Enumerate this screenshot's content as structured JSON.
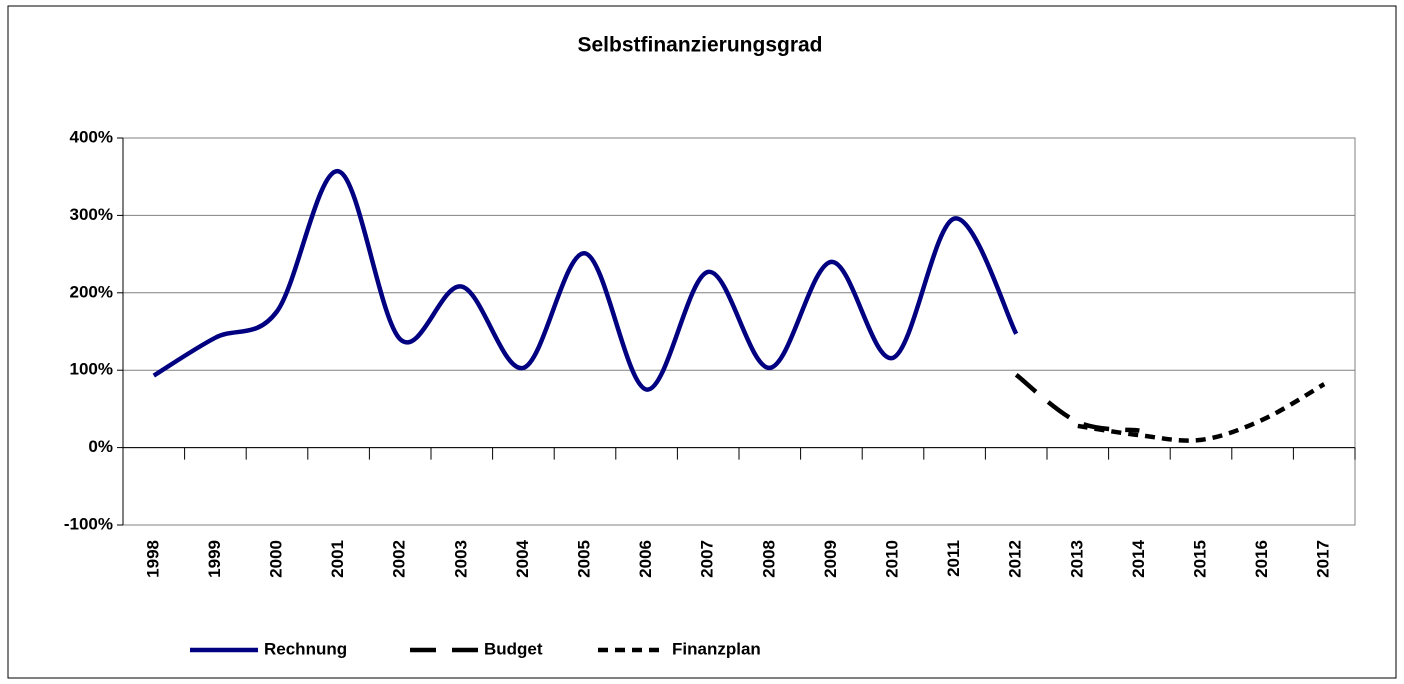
{
  "chart_data": {
    "type": "line",
    "title": "Selbstfinanzierungsgrad",
    "categories": [
      "1998",
      "1999",
      "2000",
      "2001",
      "2002",
      "2003",
      "2004",
      "2005",
      "2006",
      "2007",
      "2008",
      "2009",
      "2010",
      "2011",
      "2012",
      "2013",
      "2014",
      "2015",
      "2016",
      "2017"
    ],
    "series": [
      {
        "name": "Rechnung",
        "color": "#000080",
        "dash": "solid",
        "values": [
          93,
          142,
          176,
          357,
          140,
          208,
          103,
          251,
          75,
          227,
          103,
          240,
          116,
          296,
          147,
          null,
          null,
          null,
          null,
          null
        ]
      },
      {
        "name": "Budget",
        "color": "#000000",
        "dash": "long",
        "values": [
          null,
          null,
          null,
          null,
          null,
          null,
          null,
          null,
          null,
          null,
          null,
          null,
          null,
          null,
          94,
          33,
          22,
          null,
          null,
          null
        ]
      },
      {
        "name": "Finanzplan",
        "color": "#000000",
        "dash": "short",
        "values": [
          null,
          null,
          null,
          null,
          null,
          null,
          null,
          null,
          null,
          null,
          null,
          null,
          null,
          null,
          null,
          28,
          16,
          10,
          36,
          82
        ]
      }
    ],
    "ylim": [
      -100,
      400
    ],
    "yticks": [
      {
        "value": -100,
        "label": "-100%"
      },
      {
        "value": 0,
        "label": "0%"
      },
      {
        "value": 100,
        "label": "100%"
      },
      {
        "value": 200,
        "label": "200%"
      },
      {
        "value": 300,
        "label": "300%"
      },
      {
        "value": 400,
        "label": "400%"
      }
    ],
    "grid": true,
    "legend": "bottom"
  }
}
